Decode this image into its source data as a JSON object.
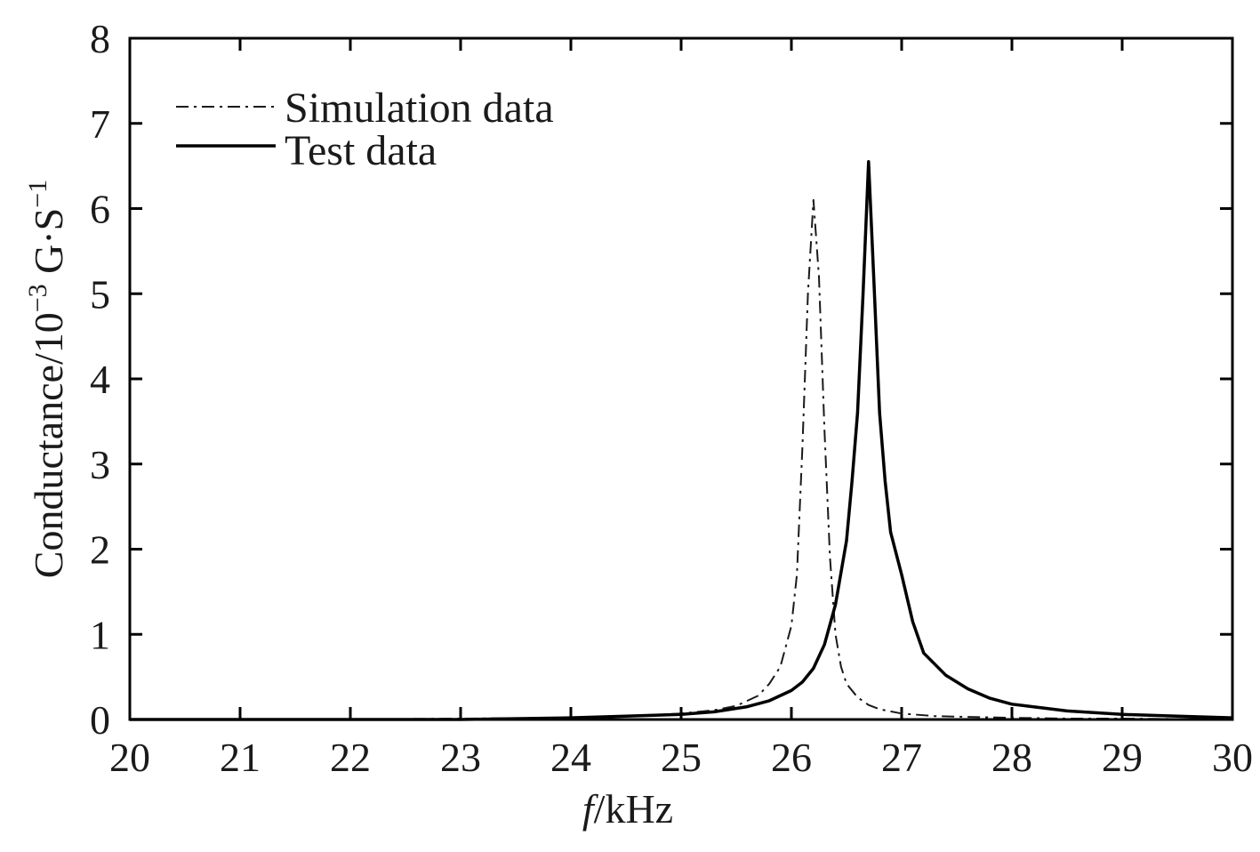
{
  "chart_data": {
    "type": "line",
    "title": "",
    "xlabel_var": "f",
    "xlabel_unit": "/kHz",
    "ylabel_main": "Conductance/10",
    "ylabel_exp": "−3",
    "ylabel_unit": " G·S",
    "ylabel_unit_exp": "−1",
    "xlim": [
      20,
      30
    ],
    "ylim": [
      0,
      8
    ],
    "xticks": [
      "20",
      "21",
      "22",
      "23",
      "24",
      "25",
      "26",
      "27",
      "28",
      "29",
      "30"
    ],
    "yticks": [
      "0",
      "1",
      "2",
      "3",
      "4",
      "5",
      "6",
      "7",
      "8"
    ],
    "grid": false,
    "legend_position": "top-left",
    "series": [
      {
        "name": "Simulation data",
        "style": "dash-dot",
        "color": "#1a1a1a",
        "x": [
          20,
          21,
          22,
          23,
          24,
          24.5,
          25,
          25.3,
          25.5,
          25.7,
          25.8,
          25.9,
          26.0,
          26.05,
          26.1,
          26.15,
          26.2,
          26.25,
          26.3,
          26.35,
          26.4,
          26.45,
          26.5,
          26.6,
          26.7,
          26.8,
          27.0,
          27.3,
          27.6,
          28,
          28.5,
          29,
          30
        ],
        "y": [
          0.0,
          0.0,
          0.0,
          0.01,
          0.02,
          0.04,
          0.07,
          0.11,
          0.16,
          0.28,
          0.42,
          0.62,
          1.1,
          1.7,
          3.2,
          5.0,
          6.1,
          5.2,
          3.4,
          1.9,
          1.0,
          0.62,
          0.42,
          0.26,
          0.17,
          0.12,
          0.07,
          0.04,
          0.03,
          0.02,
          0.01,
          0.01,
          0.0
        ]
      },
      {
        "name": "Test data",
        "style": "solid",
        "color": "#000000",
        "x": [
          20,
          21,
          22,
          23,
          24,
          24.5,
          25,
          25.3,
          25.6,
          25.8,
          26.0,
          26.1,
          26.2,
          26.3,
          26.4,
          26.5,
          26.55,
          26.6,
          26.65,
          26.7,
          26.75,
          26.8,
          26.85,
          26.9,
          27.0,
          27.1,
          27.2,
          27.4,
          27.6,
          27.8,
          28,
          28.5,
          29,
          29.5,
          30
        ],
        "y": [
          0.0,
          0.0,
          0.0,
          0.0,
          0.02,
          0.04,
          0.06,
          0.09,
          0.15,
          0.22,
          0.34,
          0.44,
          0.6,
          0.88,
          1.35,
          2.1,
          2.8,
          3.6,
          5.0,
          6.55,
          5.1,
          3.6,
          2.8,
          2.2,
          1.7,
          1.15,
          0.78,
          0.52,
          0.36,
          0.25,
          0.18,
          0.1,
          0.06,
          0.04,
          0.02
        ]
      }
    ]
  }
}
